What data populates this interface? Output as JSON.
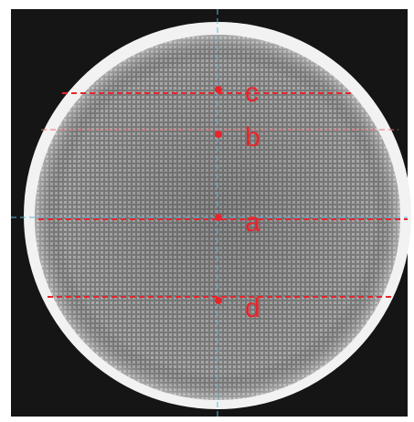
{
  "markers": [
    {
      "label": "c"
    },
    {
      "label": "b"
    },
    {
      "label": "a"
    },
    {
      "label": "d"
    }
  ]
}
